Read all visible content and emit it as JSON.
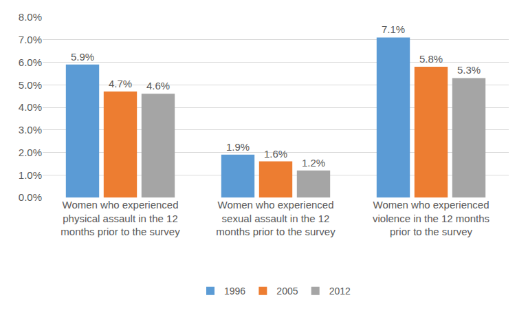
{
  "chart_data": {
    "type": "bar",
    "categories": [
      "Women who experienced physical assault in the 12 months prior to the survey",
      "Women who experienced sexual assault in the 12 months prior to the survey",
      "Women who experienced violence in the 12 months prior to the survey"
    ],
    "series": [
      {
        "name": "1996",
        "color": "#5b9bd5",
        "values": [
          5.9,
          1.9,
          7.1
        ],
        "value_labels": [
          "5.9%",
          "1.9%",
          "7.1%"
        ]
      },
      {
        "name": "2005",
        "color": "#ed7d31",
        "values": [
          4.7,
          1.6,
          5.8
        ],
        "value_labels": [
          "4.7%",
          "1.6%",
          "5.8%"
        ]
      },
      {
        "name": "2012",
        "color": "#a5a5a5",
        "values": [
          4.6,
          1.2,
          5.3
        ],
        "value_labels": [
          "4.6%",
          "1.2%",
          "5.3%"
        ]
      }
    ],
    "ylim": [
      0,
      8
    ],
    "yticks": [
      {
        "value": 0,
        "label": "0.0%"
      },
      {
        "value": 1,
        "label": "1.0%"
      },
      {
        "value": 2,
        "label": "2.0%"
      },
      {
        "value": 3,
        "label": "3.0%"
      },
      {
        "value": 4,
        "label": "4.0%"
      },
      {
        "value": 5,
        "label": "5.0%"
      },
      {
        "value": 6,
        "label": "6.0%"
      },
      {
        "value": 7,
        "label": "7.0%"
      },
      {
        "value": 8,
        "label": "8.0%"
      }
    ],
    "grid": true,
    "legend": "bottom",
    "data_labels": true
  }
}
